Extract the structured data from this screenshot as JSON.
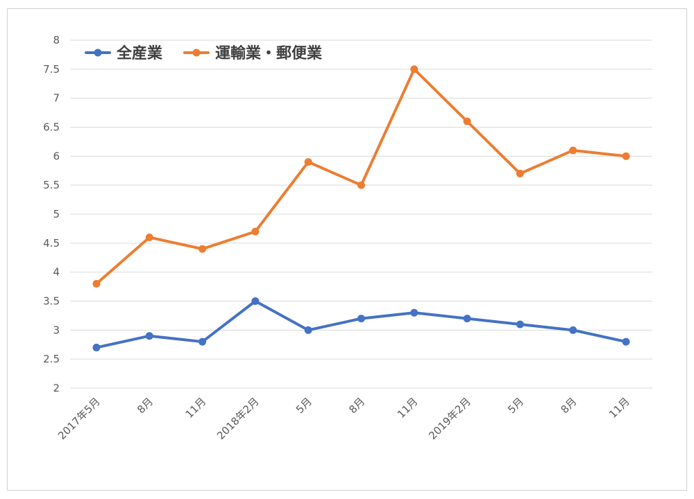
{
  "chart_data": {
    "type": "line",
    "title": "",
    "xlabel": "",
    "ylabel": "",
    "categories": [
      "2017年5月",
      "8月",
      "11月",
      "2018年2月",
      "5月",
      "8月",
      "11月",
      "2019年2月",
      "5月",
      "8月",
      "11月"
    ],
    "ylim": [
      2,
      8
    ],
    "yticks": [
      "2",
      "2.5",
      "3",
      "3.5",
      "4",
      "4.5",
      "5",
      "5.5",
      "6",
      "6.5",
      "7",
      "7.5",
      "8"
    ],
    "grid": true,
    "legend_position": "top-left",
    "series": [
      {
        "name": "全産業",
        "color": "#4472C4",
        "values": [
          2.7,
          2.9,
          2.8,
          3.5,
          3.0,
          3.2,
          3.3,
          3.2,
          3.1,
          3.0,
          2.8
        ]
      },
      {
        "name": "運輸業・郵便業",
        "color": "#ED7D31",
        "values": [
          3.8,
          4.6,
          4.4,
          4.7,
          5.9,
          5.5,
          7.5,
          6.6,
          5.7,
          6.1,
          6.0
        ]
      }
    ]
  }
}
